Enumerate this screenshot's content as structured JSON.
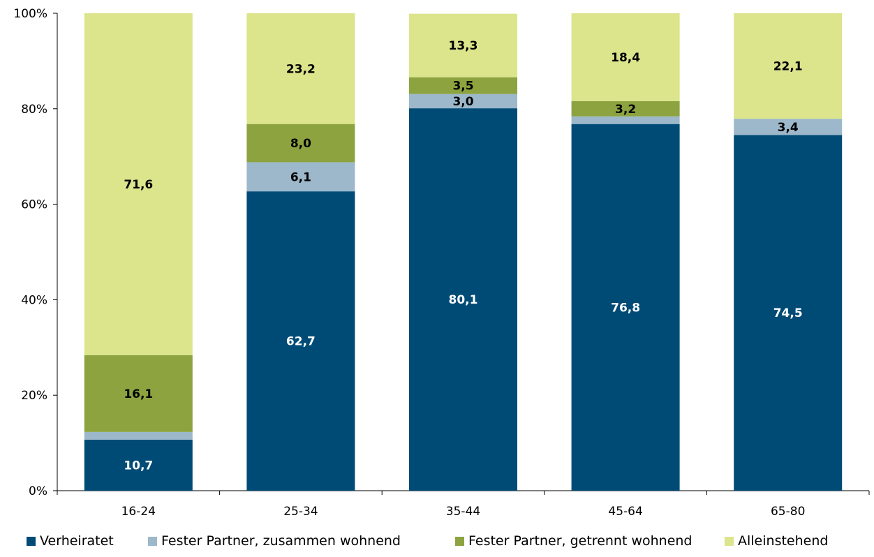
{
  "chart_data": {
    "type": "bar",
    "stacked": true,
    "categories": [
      "16-24",
      "25-34",
      "35-44",
      "45-64",
      "65-80"
    ],
    "ylim": [
      0,
      100
    ],
    "yticks": [
      "0%",
      "20%",
      "40%",
      "60%",
      "80%",
      "100%"
    ],
    "series": [
      {
        "name": "Verheiratet",
        "color": "#004b76",
        "values": [
          10.7,
          62.7,
          80.1,
          76.8,
          74.5
        ],
        "labels": [
          "10,7",
          "62,7",
          "80,1",
          "76,8",
          "74,5"
        ],
        "label_color": "#ffffff"
      },
      {
        "name": "Fester Partner, zusammen wohnend",
        "color": "#9cb8ca",
        "values": [
          1.6,
          6.1,
          3.0,
          1.6,
          3.4
        ],
        "labels": [
          "",
          "6,1",
          "3,0",
          "",
          "3,4"
        ],
        "label_color": "#000000"
      },
      {
        "name": "Fester Partner, getrennt wohnend",
        "color": "#8ca33f",
        "values": [
          16.1,
          8.0,
          3.5,
          3.2,
          0.0
        ],
        "labels": [
          "16,1",
          "8,0",
          "3,5",
          "3,2",
          ""
        ],
        "label_color": "#000000"
      },
      {
        "name": "Alleinstehend",
        "color": "#dce48c",
        "values": [
          71.6,
          23.2,
          13.3,
          18.4,
          22.1
        ],
        "labels": [
          "71,6",
          "23,2",
          "13,3",
          "18,4",
          "22,1"
        ],
        "label_color": "#000000"
      }
    ],
    "grid": false,
    "legend_position": "bottom"
  }
}
